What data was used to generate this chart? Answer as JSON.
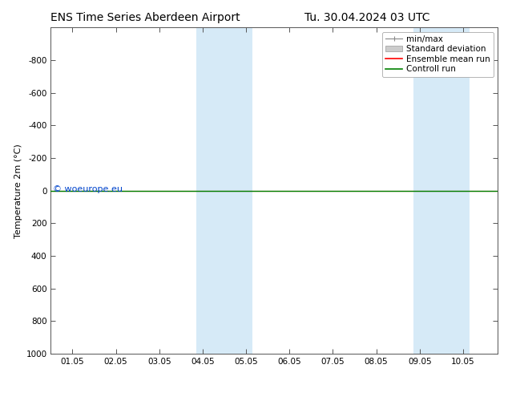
{
  "title_left": "ENS Time Series Aberdeen Airport",
  "title_right": "Tu. 30.04.2024 03 UTC",
  "ylabel": "Temperature 2m (°C)",
  "watermark": "© woeurope.eu",
  "xtick_labels": [
    "01.05",
    "02.05",
    "03.05",
    "04.05",
    "05.05",
    "06.05",
    "07.05",
    "08.05",
    "09.05",
    "10.05"
  ],
  "xtick_positions": [
    0,
    1,
    2,
    3,
    4,
    5,
    6,
    7,
    8,
    9
  ],
  "xlim": [
    -0.5,
    9.8
  ],
  "ylim_bottom": -1000,
  "ylim_top": 1000,
  "ytick_positions": [
    -800,
    -600,
    -400,
    -200,
    0,
    200,
    400,
    600,
    800,
    1000
  ],
  "ytick_labels": [
    "-800",
    "-600",
    "-400",
    "-200",
    "0",
    "200",
    "400",
    "600",
    "800",
    "1000"
  ],
  "shaded_regions": [
    {
      "x_start": 2.85,
      "x_end": 4.15
    },
    {
      "x_start": 7.85,
      "x_end": 9.15
    }
  ],
  "shaded_color": "#d6eaf7",
  "control_run_color": "#008000",
  "ensemble_mean_color": "#ff0000",
  "background_color": "#ffffff",
  "font_size_title": 10,
  "font_size_axis": 8,
  "font_size_tick": 7.5,
  "font_size_legend": 7.5,
  "font_size_watermark": 8
}
